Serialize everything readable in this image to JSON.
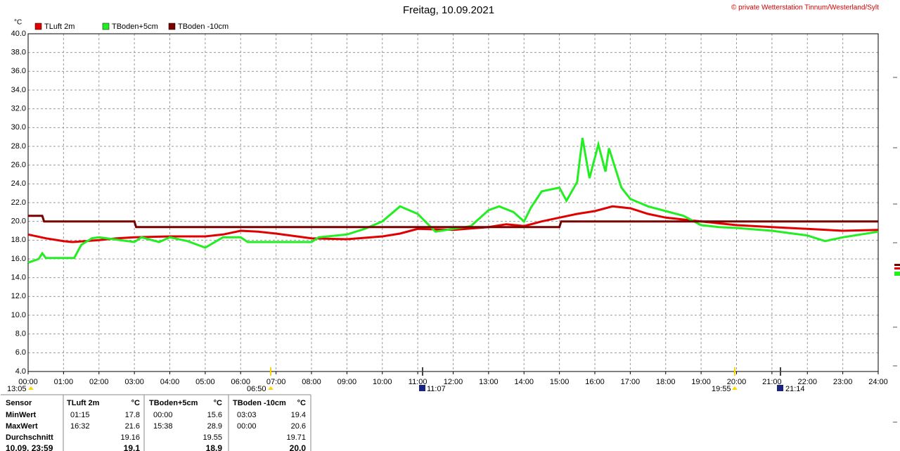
{
  "chart_data": {
    "type": "line",
    "title": "Freitag, 10.09.2021",
    "copyright": "© private Wetterstation Tinnum/Westerland/Sylt",
    "ylabel": "°C",
    "xlim": [
      0,
      24
    ],
    "ylim": [
      4,
      40
    ],
    "grid": true,
    "xticks": [
      {
        "value": 0,
        "label": "00:00"
      },
      {
        "value": 1,
        "label": "01:00"
      },
      {
        "value": 2,
        "label": "02:00"
      },
      {
        "value": 3,
        "label": "03:00"
      },
      {
        "value": 4,
        "label": "04:00"
      },
      {
        "value": 5,
        "label": "05:00"
      },
      {
        "value": 6,
        "label": "06:00"
      },
      {
        "value": 7,
        "label": "07:00"
      },
      {
        "value": 8,
        "label": "08:00"
      },
      {
        "value": 9,
        "label": "09:00"
      },
      {
        "value": 10,
        "label": "10:00"
      },
      {
        "value": 11,
        "label": "11:00"
      },
      {
        "value": 12,
        "label": "12:00"
      },
      {
        "value": 13,
        "label": "13:00"
      },
      {
        "value": 14,
        "label": "14:00"
      },
      {
        "value": 15,
        "label": "15:00"
      },
      {
        "value": 16,
        "label": "16:00"
      },
      {
        "value": 17,
        "label": "17:00"
      },
      {
        "value": 18,
        "label": "18:00"
      },
      {
        "value": 19,
        "label": "19:00"
      },
      {
        "value": 20,
        "label": "20:00"
      },
      {
        "value": 21,
        "label": "21:00"
      },
      {
        "value": 22,
        "label": "22:00"
      },
      {
        "value": 23,
        "label": "23:00"
      },
      {
        "value": 24,
        "label": "24:00"
      }
    ],
    "yticks": [
      {
        "value": 4,
        "label": "4.0"
      },
      {
        "value": 6,
        "label": "6.0"
      },
      {
        "value": 8,
        "label": "8.0"
      },
      {
        "value": 10,
        "label": "10.0"
      },
      {
        "value": 12,
        "label": "12.0"
      },
      {
        "value": 14,
        "label": "14.0"
      },
      {
        "value": 16,
        "label": "16.0"
      },
      {
        "value": 18,
        "label": "18.0"
      },
      {
        "value": 20,
        "label": "20.0"
      },
      {
        "value": 22,
        "label": "22.0"
      },
      {
        "value": 24,
        "label": "24.0"
      },
      {
        "value": 26,
        "label": "26.0"
      },
      {
        "value": 28,
        "label": "28.0"
      },
      {
        "value": 30,
        "label": "30.0"
      },
      {
        "value": 32,
        "label": "32.0"
      },
      {
        "value": 34,
        "label": "34.0"
      },
      {
        "value": 36,
        "label": "36.0"
      },
      {
        "value": 38,
        "label": "38.0"
      },
      {
        "value": 40,
        "label": "40.0"
      }
    ],
    "series": [
      {
        "name": "TLuft 2m",
        "color": "#e00000",
        "x": [
          0,
          0.5,
          1,
          1.25,
          2,
          2.5,
          3,
          4,
          5,
          5.5,
          6,
          6.5,
          7,
          8,
          9,
          10,
          10.5,
          11,
          12,
          13,
          13.5,
          14,
          14.5,
          15,
          15.5,
          16,
          16.5,
          17,
          17.5,
          18,
          19,
          20,
          21,
          22,
          23,
          24
        ],
        "values": [
          18.6,
          18.2,
          17.9,
          17.8,
          18.0,
          18.2,
          18.3,
          18.4,
          18.4,
          18.6,
          19.0,
          18.9,
          18.7,
          18.2,
          18.1,
          18.4,
          18.7,
          19.2,
          19.1,
          19.4,
          19.7,
          19.5,
          20.0,
          20.4,
          20.8,
          21.1,
          21.6,
          21.4,
          20.8,
          20.4,
          20.0,
          19.6,
          19.4,
          19.2,
          19.0,
          19.1
        ]
      },
      {
        "name": "TBoden+5cm",
        "color": "#22ee22",
        "x": [
          0,
          0.3,
          0.4,
          0.5,
          1.3,
          1.5,
          1.8,
          2,
          3,
          3.2,
          3.7,
          4,
          4.5,
          5,
          5.5,
          6,
          6.2,
          8,
          8.2,
          9,
          9.5,
          10,
          10.5,
          11,
          11.5,
          12,
          12.5,
          13,
          13.3,
          13.7,
          14,
          14.2,
          14.5,
          15,
          15.2,
          15.5,
          15.65,
          15.85,
          16.1,
          16.3,
          16.4,
          16.75,
          17,
          17.5,
          18,
          18.5,
          19,
          19.5,
          20,
          21,
          22,
          22.5,
          23,
          24
        ],
        "values": [
          15.6,
          16.0,
          16.6,
          16.1,
          16.1,
          17.5,
          18.2,
          18.3,
          17.8,
          18.3,
          17.8,
          18.3,
          17.9,
          17.2,
          18.3,
          18.3,
          17.8,
          17.8,
          18.3,
          18.6,
          19.2,
          20.0,
          21.6,
          20.8,
          18.9,
          19.2,
          19.5,
          21.2,
          21.6,
          21.0,
          20.0,
          21.5,
          23.2,
          23.6,
          22.2,
          24.2,
          28.9,
          24.6,
          28.2,
          25.3,
          27.8,
          23.6,
          22.4,
          21.6,
          21.1,
          20.6,
          19.6,
          19.4,
          19.3,
          19.0,
          18.5,
          17.9,
          18.3,
          18.9
        ]
      },
      {
        "name": "TBoden -10cm",
        "color": "#7a0000",
        "x": [
          0,
          0.4,
          0.45,
          3,
          3.05,
          15,
          15.05,
          24
        ],
        "values": [
          20.6,
          20.6,
          20.0,
          20.0,
          19.4,
          19.4,
          20.0,
          20.0
        ]
      }
    ],
    "events": [
      "13:05",
      "06:50",
      "11:07",
      "19:55",
      "21:14"
    ]
  },
  "table": {
    "header": [
      "Sensor",
      "TLuft 2m",
      "°C",
      "TBoden+5cm",
      "°C",
      "TBoden -10cm",
      "°C"
    ],
    "rows": [
      {
        "label": "MinWert",
        "cells": [
          {
            "time": "01:15",
            "value": "17.8"
          },
          {
            "time": "00:00",
            "value": "15.6"
          },
          {
            "time": "03:03",
            "value": "19.4"
          }
        ]
      },
      {
        "label": "MaxWert",
        "cells": [
          {
            "time": "16:32",
            "value": "21.6"
          },
          {
            "time": "15:38",
            "value": "28.9"
          },
          {
            "time": "00:00",
            "value": "20.6"
          }
        ]
      },
      {
        "label": "Durchschnitt",
        "cells": [
          {
            "value": "19.16"
          },
          {
            "value": "19.55"
          },
          {
            "value": "19.71"
          }
        ]
      },
      {
        "label": "10.09. 23:59",
        "cells": [
          {
            "value": "19.1"
          },
          {
            "value": "18.9"
          },
          {
            "value": "20.0"
          }
        ]
      }
    ]
  }
}
